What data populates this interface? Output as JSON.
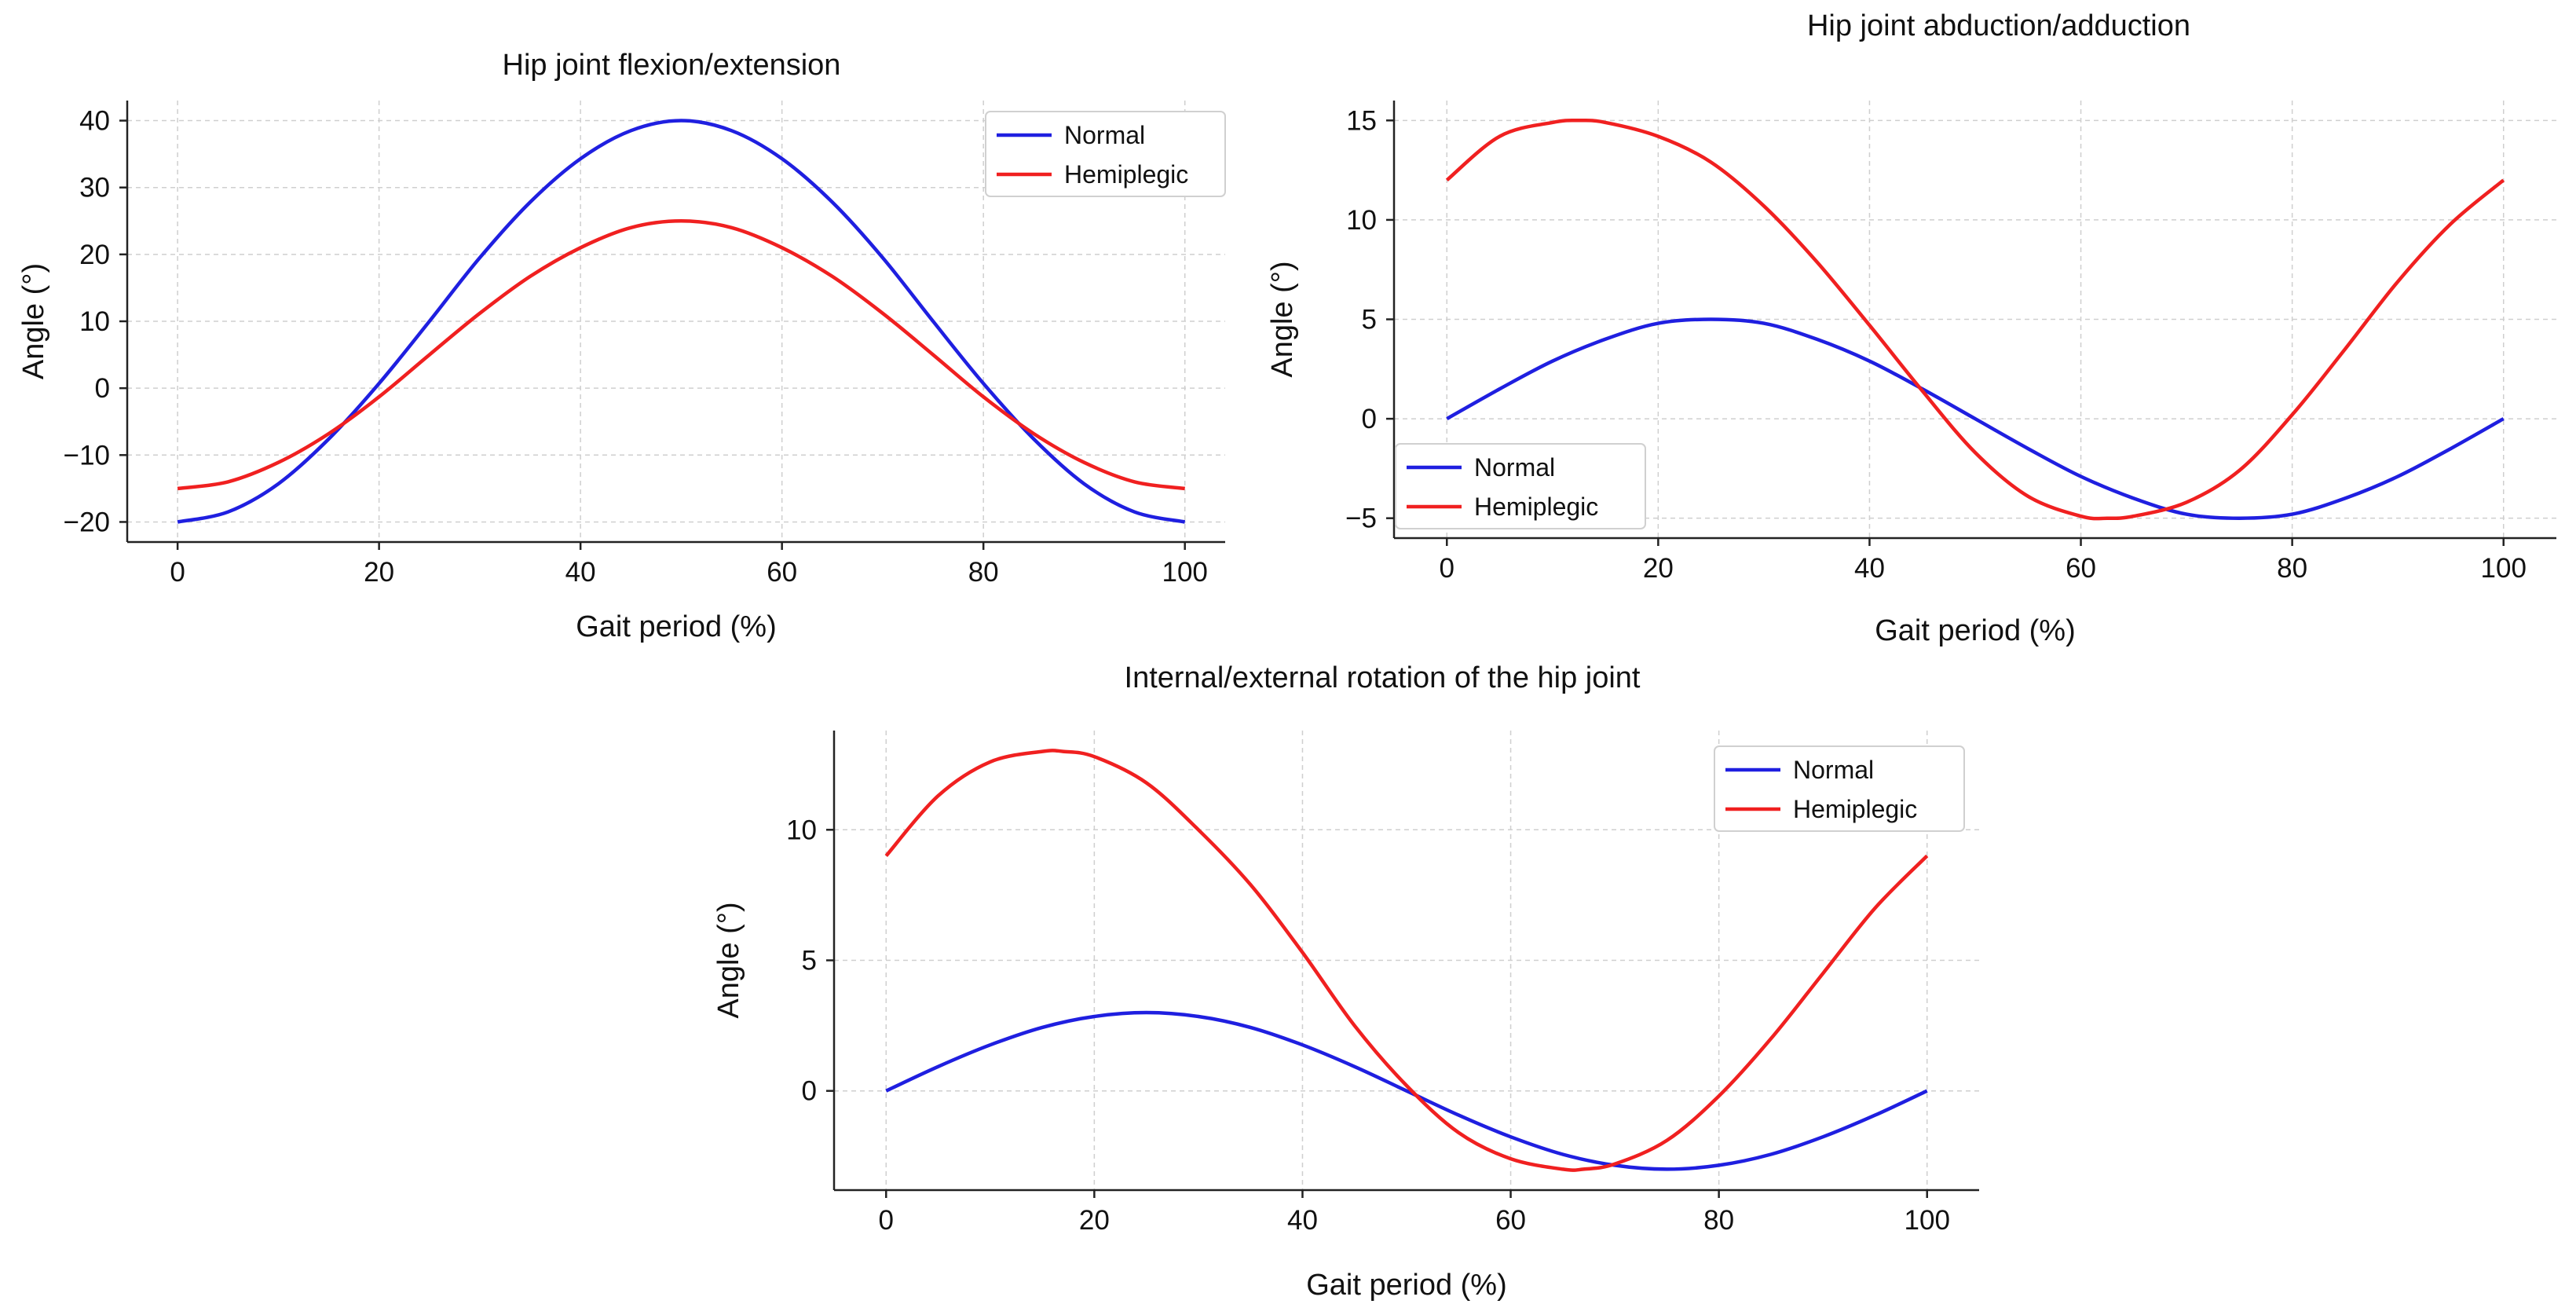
{
  "chart_data": [
    {
      "type": "line",
      "title": "Hip joint flexion/extension",
      "xlabel": "Gait period (%)",
      "ylabel": "Angle (°)",
      "xlim": [
        -5,
        104
      ],
      "ylim": [
        -23,
        43
      ],
      "xticks": [
        0,
        20,
        40,
        60,
        80,
        100
      ],
      "yticks": [
        -20,
        -10,
        0,
        10,
        20,
        30,
        40
      ],
      "grid": true,
      "legend_position": "top-right",
      "series": [
        {
          "name": "Normal",
          "color": "#1f1fe0",
          "x": [
            0,
            5,
            10,
            15,
            20,
            25,
            30,
            35,
            40,
            45,
            50,
            55,
            60,
            65,
            70,
            75,
            80,
            85,
            90,
            95,
            100
          ],
          "y": [
            -20,
            -18.5,
            -14.3,
            -7.6,
            0.7,
            10,
            19.5,
            27.8,
            34.3,
            38.5,
            40,
            38.5,
            34.3,
            27.8,
            19.5,
            10,
            0.7,
            -7.6,
            -14.3,
            -18.5,
            -20
          ]
        },
        {
          "name": "Hemiplegic",
          "color": "#f02020",
          "x": [
            0,
            5,
            10,
            15,
            20,
            25,
            30,
            35,
            40,
            45,
            50,
            55,
            60,
            65,
            70,
            75,
            80,
            85,
            90,
            95,
            100
          ],
          "y": [
            -15,
            -14,
            -11.1,
            -6.8,
            -1.3,
            5,
            11.2,
            16.7,
            21,
            24,
            25,
            24,
            21,
            16.7,
            11.2,
            5,
            -1.3,
            -6.8,
            -11.1,
            -14,
            -15
          ]
        }
      ]
    },
    {
      "type": "line",
      "title": "Hip joint abduction/adduction",
      "xlabel": "Gait period (%)",
      "ylabel": "Angle (°)",
      "xlim": [
        -5,
        105
      ],
      "ylim": [
        -6,
        16
      ],
      "xticks": [
        0,
        20,
        40,
        60,
        80,
        100
      ],
      "yticks": [
        -5,
        0,
        5,
        10,
        15
      ],
      "grid": true,
      "legend_position": "bottom-left",
      "series": [
        {
          "name": "Normal",
          "color": "#1f1fe0",
          "x": [
            0,
            5,
            10,
            15,
            20,
            25,
            30,
            35,
            40,
            45,
            50,
            55,
            60,
            65,
            70,
            75,
            80,
            85,
            90,
            95,
            100
          ],
          "y": [
            0,
            1.5,
            2.9,
            4,
            4.8,
            5,
            4.8,
            4,
            2.9,
            1.5,
            0,
            -1.5,
            -2.9,
            -4,
            -4.8,
            -5,
            -4.8,
            -4,
            -2.9,
            -1.5,
            0
          ]
        },
        {
          "name": "Hemiplegic",
          "color": "#f02020",
          "x": [
            0,
            5,
            10,
            12.5,
            15,
            20,
            25,
            30,
            35,
            40,
            45,
            50,
            55,
            60,
            62.5,
            65,
            70,
            75,
            80,
            85,
            90,
            95,
            100
          ],
          "y": [
            12,
            14.2,
            14.9,
            15,
            14.9,
            14.2,
            12.9,
            10.7,
            7.9,
            4.7,
            1.4,
            -1.7,
            -3.9,
            -4.9,
            -5,
            -4.9,
            -4.2,
            -2.6,
            0.2,
            3.5,
            6.9,
            9.8,
            12
          ]
        }
      ]
    },
    {
      "type": "line",
      "title": "Internal/external rotation of the hip joint",
      "xlabel": "Gait period (%)",
      "ylabel": "Angle (°)",
      "xlim": [
        -5,
        105
      ],
      "ylim": [
        -3.8,
        13.8
      ],
      "xticks": [
        0,
        20,
        40,
        60,
        80,
        100
      ],
      "yticks": [
        0,
        5,
        10
      ],
      "grid": true,
      "legend_position": "top-right",
      "series": [
        {
          "name": "Normal",
          "color": "#1f1fe0",
          "x": [
            0,
            5,
            10,
            15,
            20,
            25,
            30,
            35,
            40,
            45,
            50,
            55,
            60,
            65,
            70,
            75,
            80,
            85,
            90,
            95,
            100
          ],
          "y": [
            0,
            0.93,
            1.76,
            2.43,
            2.85,
            3,
            2.85,
            2.43,
            1.76,
            0.93,
            0,
            -0.93,
            -1.76,
            -2.43,
            -2.85,
            -3,
            -2.85,
            -2.43,
            -1.76,
            -0.93,
            0
          ]
        },
        {
          "name": "Hemiplegic",
          "color": "#f02020",
          "x": [
            0,
            5,
            10,
            15,
            17,
            20,
            25,
            30,
            35,
            40,
            45,
            50,
            55,
            60,
            65,
            67,
            70,
            75,
            80,
            85,
            90,
            95,
            100
          ],
          "y": [
            9,
            11.3,
            12.6,
            13,
            13,
            12.8,
            11.8,
            10,
            7.9,
            5.3,
            2.5,
            0.2,
            -1.6,
            -2.6,
            -3,
            -3,
            -2.8,
            -1.9,
            -0.2,
            2,
            4.5,
            7,
            9
          ]
        }
      ]
    }
  ]
}
